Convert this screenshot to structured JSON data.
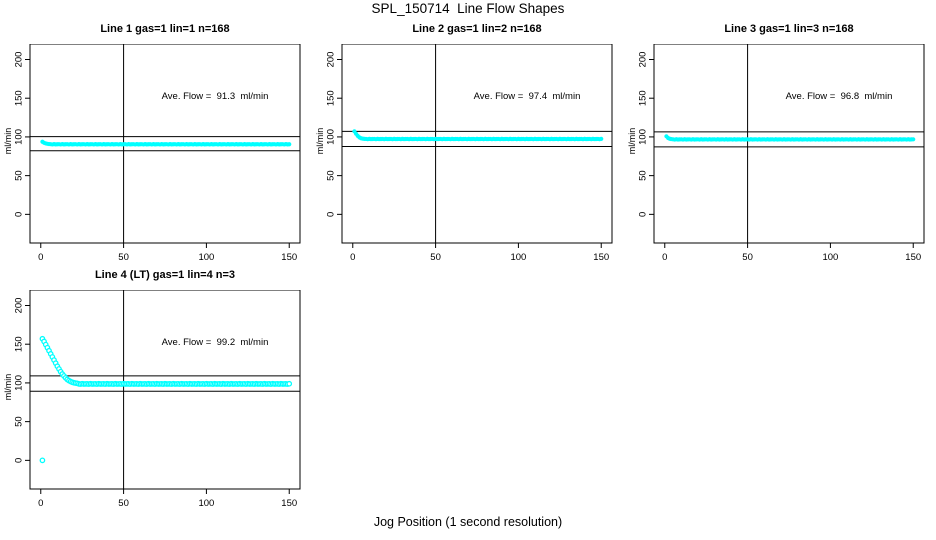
{
  "page_title": "SPL_150714  Line Flow Shapes",
  "xlabel": "Jog Position (1 second resolution)",
  "colors": {
    "data": "#00FFFF",
    "axis": "#000000",
    "background": "#FFFFFF"
  },
  "chart_data": [
    {
      "type": "scatter",
      "title": "Line 1 gas=1 lin=1 n=168",
      "annotation": "Ave. Flow =  91.3  ml/min",
      "ave_flow": 91.3,
      "ylabel": "ml/min",
      "x_ticks": [
        0,
        50,
        100,
        150
      ],
      "y_ticks": [
        0,
        50,
        100,
        150,
        200
      ],
      "xlim": [
        -6.5,
        156.5
      ],
      "ylim": [
        -37,
        220
      ],
      "vline_x": 50,
      "hlines": [
        100.4,
        82.2
      ],
      "marker": "filled",
      "x_start": 1,
      "x_step": 1,
      "y": [
        93.8,
        92.4,
        91.6,
        91.1,
        90.8,
        90.6,
        90.3,
        90.7,
        90.4,
        90.5,
        90.6,
        90.3,
        90.7,
        90.4,
        90.5,
        90.6,
        90.3,
        90.7,
        90.4,
        90.5,
        90.6,
        90.3,
        90.7,
        90.4,
        90.5,
        90.6,
        90.3,
        90.7,
        90.4,
        90.5,
        90.6,
        90.3,
        90.7,
        90.4,
        90.5,
        90.6,
        90.3,
        90.7,
        90.4,
        90.5,
        90.6,
        90.3,
        90.7,
        90.4,
        90.5,
        90.6,
        90.3,
        90.7,
        90.4,
        90.5,
        90.6,
        90.3,
        90.7,
        90.4,
        90.5,
        90.6,
        90.3,
        90.7,
        90.4,
        90.5,
        90.6,
        90.3,
        90.7,
        90.4,
        90.5,
        90.6,
        90.3,
        90.7,
        90.4,
        90.5,
        90.6,
        90.3,
        90.7,
        90.4,
        90.5,
        90.6,
        90.3,
        90.7,
        90.4,
        90.5,
        90.6,
        90.3,
        90.7,
        90.4,
        90.5,
        90.6,
        90.3,
        90.7,
        90.4,
        90.5,
        90.6,
        90.3,
        90.7,
        90.4,
        90.5,
        90.6,
        90.3,
        90.7,
        90.4,
        90.5,
        90.6,
        90.3,
        90.7,
        90.4,
        90.5,
        90.6,
        90.3,
        90.7,
        90.4,
        90.5,
        90.6,
        90.3,
        90.7,
        90.4,
        90.5,
        90.6,
        90.3,
        90.7,
        90.4,
        90.5,
        90.6,
        90.3,
        90.7,
        90.4,
        90.5,
        90.6,
        90.3,
        90.7,
        90.4,
        90.5,
        90.6,
        90.3,
        90.7,
        90.4,
        90.5,
        90.6,
        90.3,
        90.7,
        90.4,
        90.5,
        90.6,
        90.3,
        90.7,
        90.4,
        90.5,
        90.6,
        90.3,
        90.7,
        90.4,
        90.5
      ],
      "extra_points": []
    },
    {
      "type": "scatter",
      "title": "Line 2 gas=1 lin=2 n=168",
      "annotation": "Ave. Flow =  97.4  ml/min",
      "ave_flow": 97.4,
      "ylabel": "ml/min",
      "x_ticks": [
        0,
        50,
        100,
        150
      ],
      "y_ticks": [
        0,
        50,
        100,
        150,
        200
      ],
      "xlim": [
        -6.5,
        156.5
      ],
      "ylim": [
        -37,
        220
      ],
      "vline_x": 50,
      "hlines": [
        107.1,
        87.7
      ],
      "marker": "filled",
      "x_start": 1,
      "x_step": 1,
      "y": [
        107.2,
        104.0,
        101.3,
        99.4,
        98.3,
        97.8,
        97.5,
        97.4,
        97.1,
        97.5,
        97.2,
        97.3,
        97.4,
        97.1,
        97.5,
        97.2,
        97.3,
        97.4,
        97.1,
        97.5,
        97.2,
        97.3,
        97.4,
        97.1,
        97.5,
        97.2,
        97.3,
        97.4,
        97.1,
        97.5,
        97.2,
        97.3,
        97.4,
        97.1,
        97.5,
        97.2,
        97.3,
        97.4,
        97.1,
        97.5,
        97.2,
        97.3,
        97.4,
        97.1,
        97.5,
        97.2,
        97.3,
        97.4,
        97.1,
        97.5,
        97.2,
        97.3,
        97.4,
        97.1,
        97.5,
        97.2,
        97.3,
        97.4,
        97.1,
        97.5,
        97.2,
        97.3,
        97.4,
        97.1,
        97.5,
        97.2,
        97.3,
        97.4,
        97.1,
        97.5,
        97.2,
        97.3,
        97.4,
        97.1,
        97.5,
        97.2,
        97.3,
        97.4,
        97.1,
        97.5,
        97.2,
        97.3,
        97.4,
        97.1,
        97.5,
        97.2,
        97.3,
        97.4,
        97.1,
        97.5,
        97.2,
        97.3,
        97.4,
        97.1,
        97.5,
        97.2,
        97.3,
        97.4,
        97.1,
        97.5,
        97.2,
        97.3,
        97.4,
        97.1,
        97.5,
        97.2,
        97.3,
        97.4,
        97.1,
        97.5,
        97.2,
        97.3,
        97.4,
        97.1,
        97.5,
        97.2,
        97.3,
        97.4,
        97.1,
        97.5,
        97.2,
        97.3,
        97.4,
        97.1,
        97.5,
        97.2,
        97.3,
        97.4,
        97.1,
        97.5,
        97.2,
        97.3,
        97.4,
        97.1,
        97.5,
        97.2,
        97.3,
        97.4,
        97.1,
        97.5,
        97.2,
        97.3,
        97.4,
        97.1,
        97.5,
        97.2,
        97.3,
        97.4,
        97.1,
        97.5
      ],
      "extra_points": []
    },
    {
      "type": "scatter",
      "title": "Line 3 gas=1 lin=3 n=168",
      "annotation": "Ave. Flow =  96.8  ml/min",
      "ave_flow": 96.8,
      "ylabel": "ml/min",
      "x_ticks": [
        0,
        50,
        100,
        150
      ],
      "y_ticks": [
        0,
        50,
        100,
        150,
        200
      ],
      "xlim": [
        -6.5,
        156.5
      ],
      "ylim": [
        -37,
        220
      ],
      "vline_x": 50,
      "hlines": [
        106.5,
        87.1
      ],
      "marker": "filled",
      "x_start": 1,
      "x_step": 1,
      "y": [
        100.8,
        98.6,
        97.6,
        97.2,
        96.9,
        96.6,
        97.0,
        96.7,
        96.8,
        96.9,
        96.6,
        97.0,
        96.7,
        96.8,
        96.9,
        96.6,
        97.0,
        96.7,
        96.8,
        96.9,
        96.6,
        97.0,
        96.7,
        96.8,
        96.9,
        96.6,
        97.0,
        96.7,
        96.8,
        96.9,
        96.6,
        97.0,
        96.7,
        96.8,
        96.9,
        96.6,
        97.0,
        96.7,
        96.8,
        96.9,
        96.6,
        97.0,
        96.7,
        96.8,
        96.9,
        96.6,
        97.0,
        96.7,
        96.8,
        96.9,
        96.6,
        97.0,
        96.7,
        96.8,
        96.9,
        96.6,
        97.0,
        96.7,
        96.8,
        96.9,
        96.6,
        97.0,
        96.7,
        96.8,
        96.9,
        96.6,
        97.0,
        96.7,
        96.8,
        96.9,
        96.6,
        97.0,
        96.7,
        96.8,
        96.9,
        96.6,
        97.0,
        96.7,
        96.8,
        96.9,
        96.6,
        97.0,
        96.7,
        96.8,
        96.9,
        96.6,
        97.0,
        96.7,
        96.8,
        96.9,
        96.6,
        97.0,
        96.7,
        96.8,
        96.9,
        96.6,
        97.0,
        96.7,
        96.8,
        96.9,
        96.6,
        97.0,
        96.7,
        96.8,
        96.9,
        96.6,
        97.0,
        96.7,
        96.8,
        96.9,
        96.6,
        97.0,
        96.7,
        96.8,
        96.9,
        96.6,
        97.0,
        96.7,
        96.8,
        96.9,
        96.6,
        97.0,
        96.7,
        96.8,
        96.9,
        96.6,
        97.0,
        96.7,
        96.8,
        96.9,
        96.6,
        97.0,
        96.7,
        96.8,
        96.9,
        96.6,
        97.0,
        96.7,
        96.8,
        96.9,
        96.6,
        97.0,
        96.7,
        96.8,
        96.9,
        96.6,
        97.0,
        96.7,
        96.8,
        96.9
      ],
      "extra_points": []
    },
    {
      "type": "scatter",
      "title": "Line 4 (LT) gas=1 lin=4 n=3",
      "annotation": "Ave. Flow =  99.2  ml/min",
      "ave_flow": 99.2,
      "ylabel": "ml/min",
      "x_ticks": [
        0,
        50,
        100,
        150
      ],
      "y_ticks": [
        0,
        50,
        100,
        150,
        200
      ],
      "xlim": [
        -6.5,
        156.5
      ],
      "ylim": [
        -37,
        220
      ],
      "vline_x": 50,
      "hlines": [
        109.1,
        89.3
      ],
      "marker": "open",
      "x_start": 1,
      "x_step": 1,
      "y": [
        157.0,
        153.5,
        149.5,
        145.5,
        141.5,
        137.5,
        133.5,
        129.5,
        125.5,
        121.5,
        118.0,
        114.5,
        111.5,
        109.0,
        106.5,
        104.5,
        103.0,
        101.8,
        100.9,
        100.2,
        99.8,
        99.5,
        98.8,
        98.5,
        98.9,
        98.6,
        98.7,
        98.8,
        98.5,
        98.9,
        98.6,
        98.7,
        98.8,
        98.5,
        98.9,
        98.6,
        98.7,
        98.8,
        98.5,
        98.9,
        98.6,
        98.7,
        98.8,
        98.5,
        98.9,
        98.6,
        98.7,
        98.8,
        98.5,
        98.9,
        98.6,
        98.7,
        98.8,
        98.5,
        98.9,
        98.6,
        98.7,
        98.8,
        98.5,
        98.9,
        98.6,
        98.7,
        98.8,
        98.5,
        98.9,
        98.6,
        98.7,
        98.8,
        98.5,
        98.9,
        98.6,
        98.7,
        98.8,
        98.5,
        98.9,
        98.6,
        98.7,
        98.8,
        98.5,
        98.9,
        98.6,
        98.7,
        98.8,
        98.5,
        98.9,
        98.6,
        98.7,
        98.8,
        98.5,
        98.9,
        98.6,
        98.7,
        98.8,
        98.5,
        98.9,
        98.6,
        98.7,
        98.8,
        98.5,
        98.9,
        98.6,
        98.7,
        98.8,
        98.5,
        98.9,
        98.6,
        98.7,
        98.8,
        98.5,
        98.9,
        98.6,
        98.7,
        98.8,
        98.5,
        98.9,
        98.6,
        98.7,
        98.8,
        98.5,
        98.9,
        98.6,
        98.7,
        98.8,
        98.5,
        98.9,
        98.6,
        98.7,
        98.8,
        98.5,
        98.9,
        98.6,
        98.7,
        98.8,
        98.5,
        98.9,
        98.6,
        98.7,
        98.8,
        98.5,
        98.9,
        98.6,
        98.7,
        98.8,
        98.5,
        98.9,
        98.6,
        98.7,
        98.8,
        98.5,
        98.9
      ],
      "extra_points": [
        [
          1,
          0
        ]
      ]
    }
  ]
}
